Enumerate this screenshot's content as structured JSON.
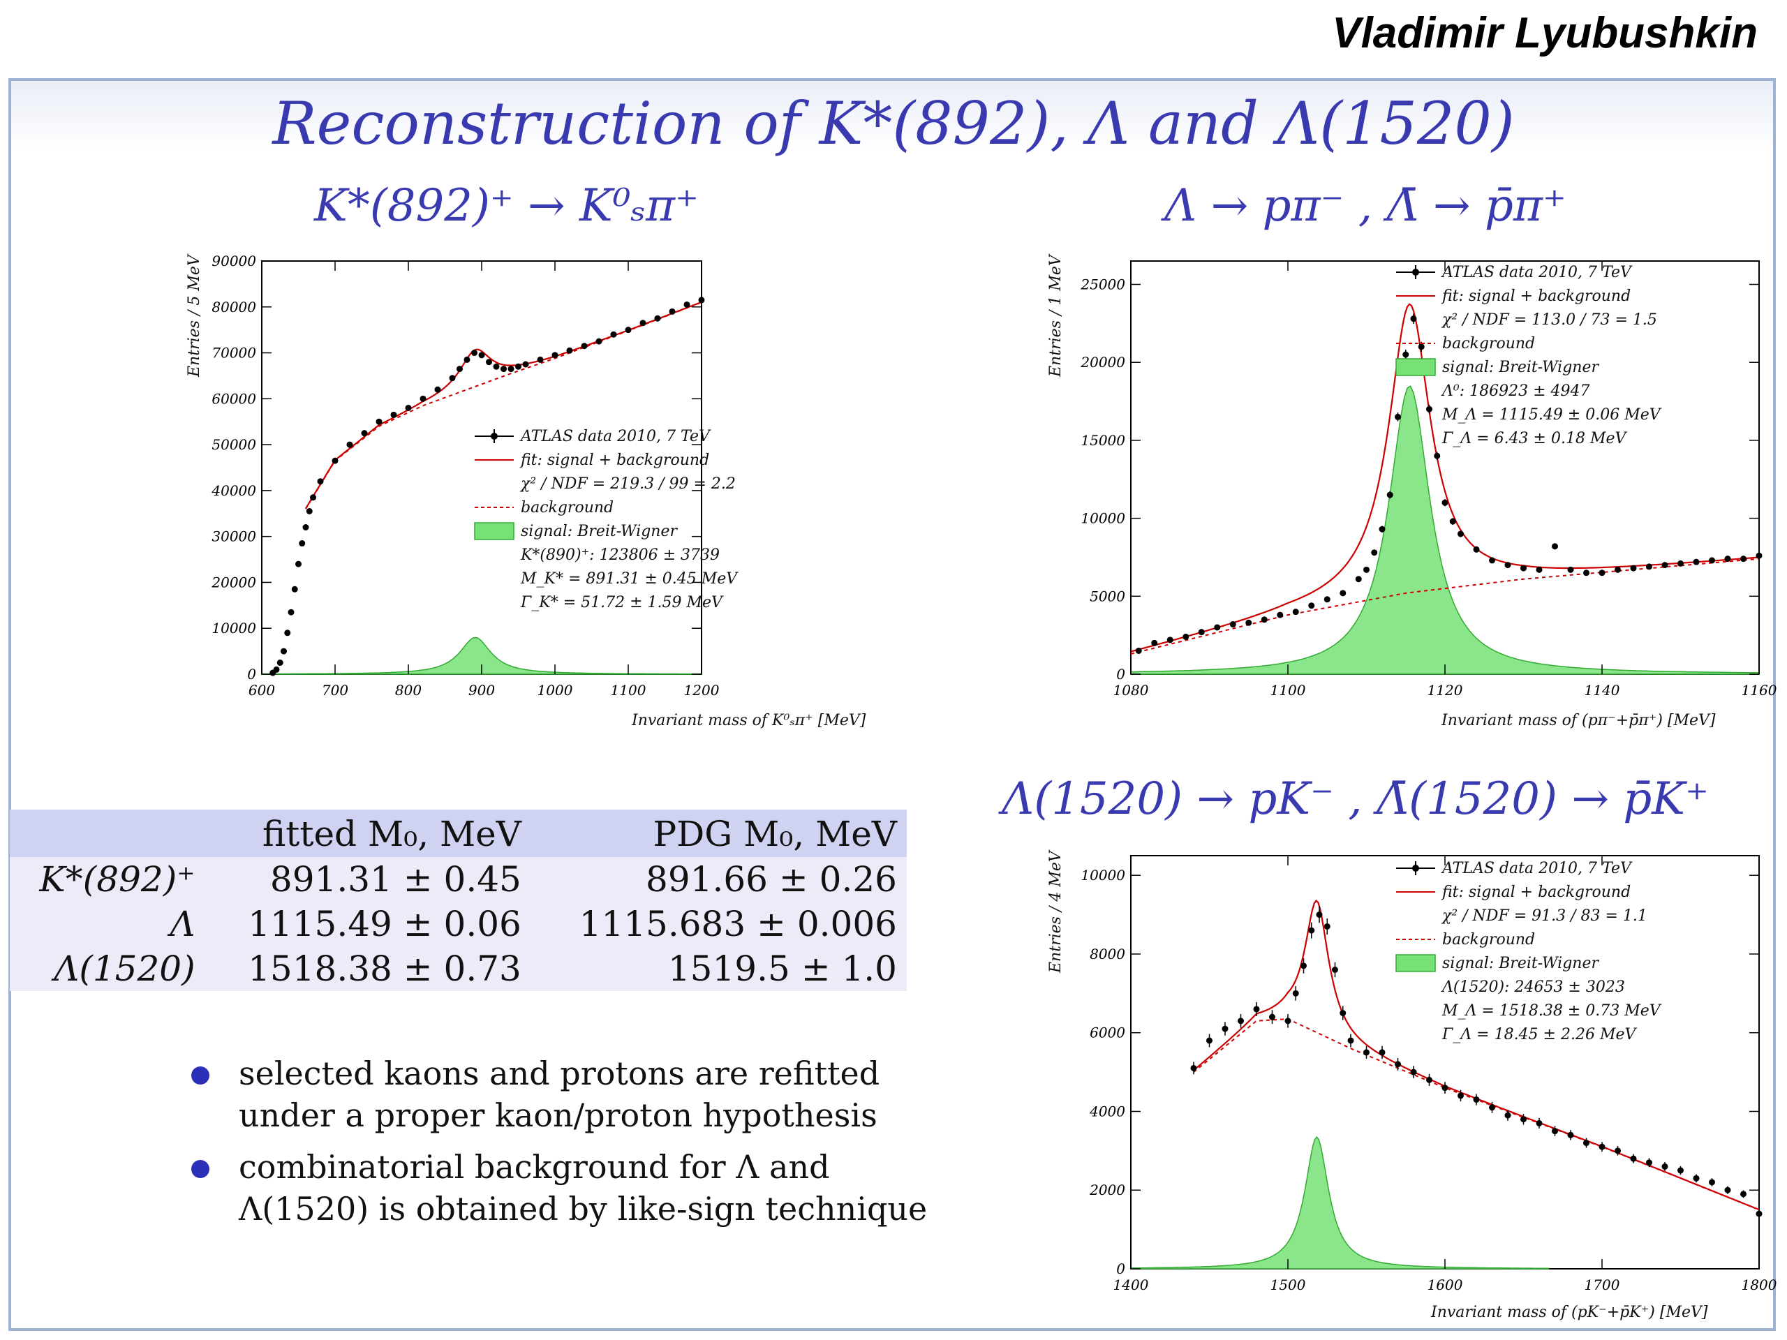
{
  "header": {
    "author": "Vladimir Lyubushkin"
  },
  "slide": {
    "title": "Reconstruction of K*(892), Λ and Λ(1520)",
    "subtitles": {
      "kstar": "K*(892)⁺ → K⁰ₛπ⁺",
      "lambda": "Λ → pπ⁻ , Λ̄ → p̄π⁺",
      "lambda1520": "Λ(1520) → pK⁻ , Λ̄(1520) → p̄K⁺"
    }
  },
  "table": {
    "headers": [
      "",
      "fitted M₀,  MeV",
      "PDG M₀,  MeV"
    ],
    "rows": [
      [
        "K*(892)⁺",
        "891.31 ± 0.45",
        "891.66 ± 0.26"
      ],
      [
        "Λ",
        "1115.49 ± 0.06",
        "1115.683 ± 0.006"
      ],
      [
        "Λ(1520)",
        "1518.38 ± 0.73",
        "1519.5 ± 1.0"
      ]
    ]
  },
  "bullets": [
    "selected kaons and protons are refitted under a proper kaon/proton hypothesis",
    "combinatorial background for Λ and Λ(1520) is obtained by like-sign technique"
  ],
  "colors": {
    "title_blue": "#3a3ab0",
    "fit_red": "#cc0000",
    "signal_green": "#66dd66",
    "bullet_blue": "#2b2fb8"
  },
  "chart_data": [
    {
      "type": "scatter",
      "xlabel": "Invariant mass of K⁰ₛπ⁺ [MeV]",
      "ylabel": "Entries / 5 MeV",
      "xlim": [
        600,
        1200
      ],
      "ylim": [
        0,
        90000
      ],
      "xticks": [
        600,
        700,
        800,
        900,
        1000,
        1100,
        1200
      ],
      "yticks": [
        0,
        10000,
        20000,
        30000,
        40000,
        50000,
        60000,
        70000,
        80000,
        90000
      ],
      "legend_position": "center-right",
      "legend": [
        "ATLAS data 2010, 7 TeV",
        "fit: signal + background",
        "χ² / NDF = 219.3 / 99 = 2.2",
        "background",
        "signal: Breit-Wigner",
        "K*(890)⁺: 123806 ± 3739",
        "M_K* = 891.31 ± 0.45 MeV",
        "Γ_K* = 51.72 ± 1.59 MeV"
      ],
      "series": [
        {
          "name": "ATLAS data 2010, 7 TeV",
          "x": [
            615,
            620,
            625,
            630,
            635,
            640,
            645,
            650,
            655,
            660,
            665,
            670,
            680,
            700,
            720,
            740,
            760,
            780,
            800,
            820,
            840,
            860,
            870,
            880,
            890,
            900,
            910,
            920,
            930,
            940,
            950,
            960,
            980,
            1000,
            1020,
            1040,
            1060,
            1080,
            1100,
            1120,
            1140,
            1160,
            1180,
            1200
          ],
          "y": [
            300,
            1000,
            2500,
            5000,
            9000,
            13500,
            18500,
            24000,
            28500,
            32000,
            35500,
            38500,
            42000,
            46500,
            50000,
            52500,
            55000,
            56500,
            58000,
            60000,
            62000,
            64500,
            66500,
            68500,
            70000,
            69500,
            68000,
            67000,
            66500,
            66500,
            67000,
            67500,
            68500,
            69500,
            70500,
            71500,
            72500,
            74000,
            75000,
            76500,
            77500,
            79000,
            80500,
            81500
          ]
        },
        {
          "name": "fit: signal + background",
          "peak_mass": 891.31,
          "width": 51.72
        },
        {
          "name": "background"
        },
        {
          "name": "signal: Breit-Wigner",
          "peak_mass": 891.31,
          "width": 51.72,
          "peak_height": 8000
        }
      ]
    },
    {
      "type": "scatter",
      "xlabel": "Invariant mass of (pπ⁻+p̄π⁺) [MeV]",
      "ylabel": "Entries / 1 MeV",
      "xlim": [
        1080,
        1160
      ],
      "ylim": [
        0,
        26500
      ],
      "xticks": [
        1080,
        1100,
        1120,
        1140,
        1160
      ],
      "yticks": [
        0,
        5000,
        10000,
        15000,
        20000,
        25000
      ],
      "legend_position": "top-right",
      "legend": [
        "ATLAS data 2010, 7 TeV",
        "fit: signal + background",
        "χ² / NDF = 113.0 / 73 = 1.5",
        "background",
        "signal: Breit-Wigner",
        "Λ⁰: 186923 ± 4947",
        "M_Λ = 1115.49 ± 0.06 MeV",
        "Γ_Λ = 6.43 ± 0.18 MeV"
      ],
      "series": [
        {
          "name": "ATLAS data 2010, 7 TeV",
          "x": [
            1081,
            1083,
            1085,
            1087,
            1089,
            1091,
            1093,
            1095,
            1097,
            1099,
            1101,
            1103,
            1105,
            1107,
            1109,
            1110,
            1111,
            1112,
            1113,
            1114,
            1115,
            1116,
            1117,
            1118,
            1119,
            1120,
            1121,
            1122,
            1124,
            1126,
            1128,
            1130,
            1132,
            1134,
            1136,
            1138,
            1140,
            1142,
            1144,
            1146,
            1148,
            1150,
            1152,
            1154,
            1156,
            1158,
            1160
          ],
          "y": [
            1500,
            2000,
            2200,
            2400,
            2700,
            3000,
            3200,
            3300,
            3500,
            3800,
            4000,
            4400,
            4800,
            5200,
            6100,
            6700,
            7800,
            9300,
            11500,
            16500,
            20500,
            22800,
            21000,
            17000,
            14000,
            11000,
            9800,
            9000,
            8000,
            7300,
            7000,
            6800,
            6700,
            8200,
            6700,
            6500,
            6500,
            6700,
            6800,
            6900,
            7000,
            7100,
            7200,
            7300,
            7400,
            7400,
            7600
          ]
        },
        {
          "name": "fit: signal + background",
          "peak_mass": 1115.49,
          "width": 6.43
        },
        {
          "name": "background"
        },
        {
          "name": "signal: Breit-Wigner",
          "peak_mass": 1115.49,
          "width": 6.43,
          "peak_height": 18500
        }
      ]
    },
    {
      "type": "scatter",
      "xlabel": "Invariant mass of (pK⁻+p̄K⁺) [MeV]",
      "ylabel": "Entries / 4 MeV",
      "xlim": [
        1400,
        1800
      ],
      "ylim": [
        0,
        10500
      ],
      "xticks": [
        1400,
        1500,
        1600,
        1700,
        1800
      ],
      "yticks": [
        0,
        2000,
        4000,
        6000,
        8000,
        10000
      ],
      "legend_position": "top-right",
      "legend": [
        "ATLAS data 2010, 7 TeV",
        "fit: signal + background",
        "χ² / NDF = 91.3 / 83 = 1.1",
        "background",
        "signal: Breit-Wigner",
        "Λ(1520): 24653 ± 3023",
        "M_Λ = 1518.38 ± 0.73 MeV",
        "Γ_Λ = 18.45 ± 2.26 MeV"
      ],
      "series": [
        {
          "name": "ATLAS data 2010, 7 TeV",
          "x": [
            1440,
            1450,
            1460,
            1470,
            1480,
            1490,
            1500,
            1505,
            1510,
            1515,
            1520,
            1525,
            1530,
            1535,
            1540,
            1550,
            1560,
            1570,
            1580,
            1590,
            1600,
            1610,
            1620,
            1630,
            1640,
            1650,
            1660,
            1670,
            1680,
            1690,
            1700,
            1710,
            1720,
            1730,
            1740,
            1750,
            1760,
            1770,
            1780,
            1790,
            1800
          ],
          "y": [
            5100,
            5800,
            6100,
            6300,
            6600,
            6400,
            6300,
            7000,
            7700,
            8600,
            9000,
            8700,
            7600,
            6500,
            5800,
            5500,
            5500,
            5200,
            5000,
            4800,
            4600,
            4400,
            4300,
            4100,
            3900,
            3800,
            3700,
            3500,
            3400,
            3200,
            3100,
            3000,
            2800,
            2700,
            2600,
            2500,
            2300,
            2200,
            2000,
            1900,
            1400
          ]
        },
        {
          "name": "fit: signal + background",
          "peak_mass": 1518.38,
          "width": 18.45
        },
        {
          "name": "background"
        },
        {
          "name": "signal: Breit-Wigner",
          "peak_mass": 1518.38,
          "width": 18.45,
          "peak_height": 3350
        }
      ]
    }
  ]
}
